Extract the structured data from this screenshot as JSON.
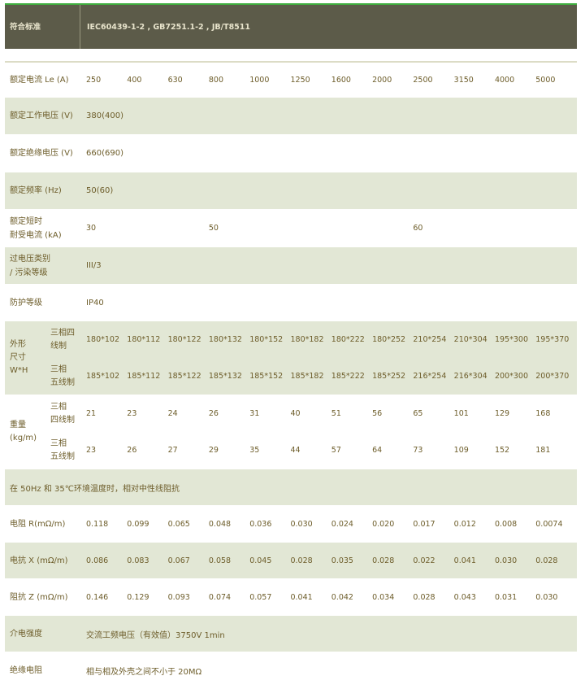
{
  "header": {
    "label": "符合标准",
    "value": "IEC60439-1-2 , GB7251.1-2 , JB/T8511"
  },
  "rated_current": {
    "label": "额定电流 Le (A)",
    "values": [
      "250",
      "400",
      "630",
      "800",
      "1000",
      "1250",
      "1600",
      "2000",
      "2500",
      "3150",
      "4000",
      "5000"
    ]
  },
  "rated_voltage": {
    "label": "额定工作电压 (V)",
    "value": "380(400)"
  },
  "insulation_voltage": {
    "label": "额定绝缘电压 (V)",
    "value": "660(690)"
  },
  "frequency": {
    "label": "额定频率 (Hz)",
    "value": "50(60)"
  },
  "short_time": {
    "label": "额定短时\n耐受电流 (kA)",
    "values": [
      "30",
      "",
      "",
      "50",
      "",
      "",
      "",
      "",
      "60",
      "",
      "",
      ""
    ]
  },
  "overvoltage": {
    "label": "过电压类别\n/ 污染等级",
    "value": "III/3"
  },
  "protection": {
    "label": "防护等级",
    "value": "IP40"
  },
  "dimensions": {
    "label": "外形\n尺寸\nW*H",
    "rows": [
      {
        "label": "三相四\n线制",
        "values": [
          "180*102",
          "180*112",
          "180*122",
          "180*132",
          "180*152",
          "180*182",
          "180*222",
          "180*252",
          "210*254",
          "210*304",
          "195*300",
          "195*370"
        ]
      },
      {
        "label": "三相\n五线制",
        "values": [
          "185*102",
          "185*112",
          "185*122",
          "185*132",
          "185*152",
          "185*182",
          "185*222",
          "185*252",
          "216*254",
          "216*304",
          "200*300",
          "200*370"
        ]
      }
    ]
  },
  "weight": {
    "label": "重量\n(kg/m)",
    "rows": [
      {
        "label": "三相\n四线制",
        "values": [
          "21",
          "23",
          "24",
          "26",
          "31",
          "40",
          "51",
          "56",
          "65",
          "101",
          "129",
          "168"
        ]
      },
      {
        "label": "三相\n五线制",
        "values": [
          "23",
          "26",
          "27",
          "29",
          "35",
          "44",
          "57",
          "64",
          "73",
          "109",
          "152",
          "181"
        ]
      }
    ]
  },
  "impedance_note": "在 50Hz 和 35℃环境温度时，相对中性线阻抗",
  "resistance": {
    "label": "电阻 R(mΩ/m)",
    "values": [
      "0.118",
      "0.099",
      "0.065",
      "0.048",
      "0.036",
      "0.030",
      "0.024",
      "0.020",
      "0.017",
      "0.012",
      "0.008",
      "0.0074"
    ]
  },
  "reactance": {
    "label": "电抗 X (mΩ/m)",
    "values": [
      "0.086",
      "0.083",
      "0.067",
      "0.058",
      "0.045",
      "0.028",
      "0.035",
      "0.028",
      "0.022",
      "0.041",
      "0.030",
      "0.028"
    ]
  },
  "impedance": {
    "label": "阻抗 Z (mΩ/m)",
    "values": [
      "0.146",
      "0.129",
      "0.093",
      "0.074",
      "0.057",
      "0.041",
      "0.042",
      "0.034",
      "0.028",
      "0.043",
      "0.031",
      "0.030"
    ]
  },
  "dielectric": {
    "label": "介电强度",
    "value": "交流工频电压（有效值）3750V 1min"
  },
  "insulation_resistance": {
    "label": "绝缘电阻",
    "value": "相与相及外壳之间不小于 20MΩ"
  },
  "colors": {
    "header_bg": "#5c5b49",
    "shaded_row": "#e2e7d5",
    "text": "#6d5d2a",
    "accent_line": "#3fae3f"
  }
}
